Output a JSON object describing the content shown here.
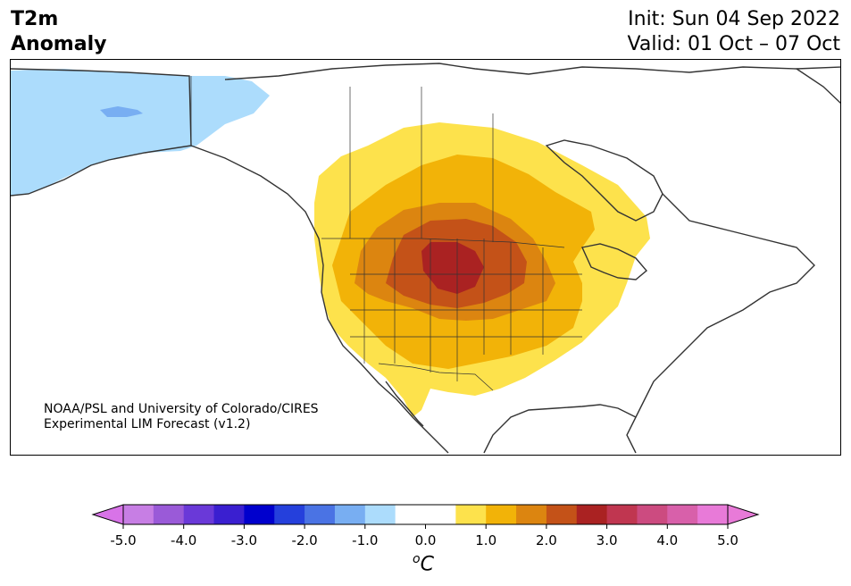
{
  "header": {
    "title_line1": "T2m",
    "title_line2": "Anomaly",
    "init": "Init: Sun 04 Sep 2022",
    "valid": "Valid: 01 Oct – 07 Oct"
  },
  "credit": {
    "line1": "NOAA/PSL and University of Colorado/CIRES",
    "line2": "Experimental LIM Forecast (v1.2)"
  },
  "colorbar": {
    "unit_base": "C",
    "unit_sup": "o",
    "tick_labels": [
      "-5.0",
      "-4.0",
      "-3.0",
      "-2.0",
      "-1.0",
      "0.0",
      "1.0",
      "2.0",
      "3.0",
      "4.0",
      "5.0"
    ],
    "colors": [
      "#c77ee4",
      "#9a5ad8",
      "#6a39d8",
      "#3a1fd0",
      "#0000cd",
      "#2540dc",
      "#4a73e4",
      "#78aef2",
      "#acdcfc",
      "#ffffff",
      "#ffffff",
      "#fde24c",
      "#f2b308",
      "#dc8510",
      "#c45218",
      "#aa2222",
      "#c03650",
      "#cc4b80",
      "#d860aa",
      "#e87ad8"
    ],
    "under_color": "#d873e8",
    "over_color": "#e87ad8"
  },
  "map": {
    "region": "North America",
    "anomaly_colors": {
      "cold_light": "#acdcfc",
      "cold_mid": "#78aef2",
      "warm_1": "#fde24c",
      "warm_2": "#f2b308",
      "warm_3": "#dc8510",
      "warm_4": "#c45218",
      "warm_5": "#aa2222"
    }
  }
}
